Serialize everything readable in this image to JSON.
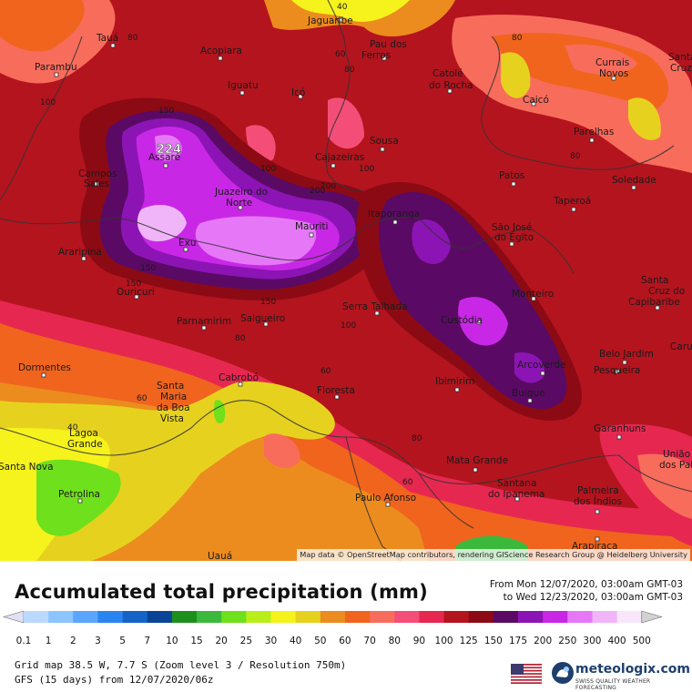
{
  "legend": {
    "title": "Accumulated total precipitation (mm)",
    "range_from": "From Mon 12/07/2020, 03:00am GMT-03",
    "range_to": "to Wed 12/23/2020, 03:00am GMT-03",
    "ticks": [
      "0.1",
      "1",
      "2",
      "3",
      "5",
      "7",
      "10",
      "15",
      "20",
      "25",
      "30",
      "40",
      "50",
      "60",
      "70",
      "80",
      "90",
      "100",
      "125",
      "150",
      "175",
      "200",
      "250",
      "300",
      "400",
      "500"
    ],
    "colors": [
      "#e1e1f5",
      "#bbd9ff",
      "#8cc4ff",
      "#5aa6ff",
      "#2a85f0",
      "#1464c8",
      "#0b4496",
      "#1d8f1d",
      "#3cb93c",
      "#6fe01c",
      "#b9ee1a",
      "#f5f21c",
      "#e6d21e",
      "#ec8c1e",
      "#f0641e",
      "#f86c5c",
      "#f44e78",
      "#e62850",
      "#b4141e",
      "#8c0a14",
      "#5a0a64",
      "#8c14b4",
      "#c828e6",
      "#e678f8",
      "#f0b4f8",
      "#fae6fa",
      "#d2d2d2"
    ]
  },
  "map": {
    "attribution": "Map data © OpenStreetMap contributors, rendering GIScience Research Group @ Heidelberg University",
    "peak_value": "224",
    "places": [
      "Jaguaribe",
      "Tauá",
      "Acopiara",
      "Pau dos",
      "Ferros",
      "Parambu",
      "Iguatu",
      "Icó",
      "Catolé",
      "do Rocha",
      "Currais",
      "Novos",
      "Santa",
      "Cruz",
      "Caicó",
      "Assaré",
      "Sousa",
      "Parelhas",
      "Campos",
      "Sales",
      "Cajazeiras",
      "Patos",
      "Juazeiro do",
      "Norte",
      "Soledade",
      "Taperoá",
      "Mauriti",
      "Itaporanga",
      "São José",
      "do Egito",
      "Araripina",
      "Exu",
      "Ouricuri",
      "Monteiro",
      "Santa",
      "Cruz do",
      "Capibaribe",
      "Serra Talhada",
      "Parnamirim",
      "Salgueiro",
      "Custódia",
      "Belo Jardim",
      "Pesqueira",
      "Dormentes",
      "Arcoverde",
      "Santa",
      "Maria",
      "da Boa",
      "Vista",
      "Cabrobó",
      "Floresta",
      "Ibimirim",
      "Buíque",
      "Garanhuns",
      "Lagoa",
      "Grande",
      "Mata Grande",
      "Santa Nova",
      "Petrolina",
      "Santana",
      "do Ipanema",
      "Paulo Afonso",
      "Palmeira",
      "dos Índios",
      "Arapiraca",
      "Uauá",
      "União",
      "dos Palm",
      "Caru"
    ]
  },
  "footer": {
    "grid_line": "Grid map 38.5 W, 7.7 S (Zoom level 3 / Resolution 750m)",
    "model_line": "GFS (15 days) from  12/07/2020/06z",
    "brand_name": "meteologix.com",
    "brand_tag": "SWISS QUALITY WEATHER FORECASTING"
  }
}
